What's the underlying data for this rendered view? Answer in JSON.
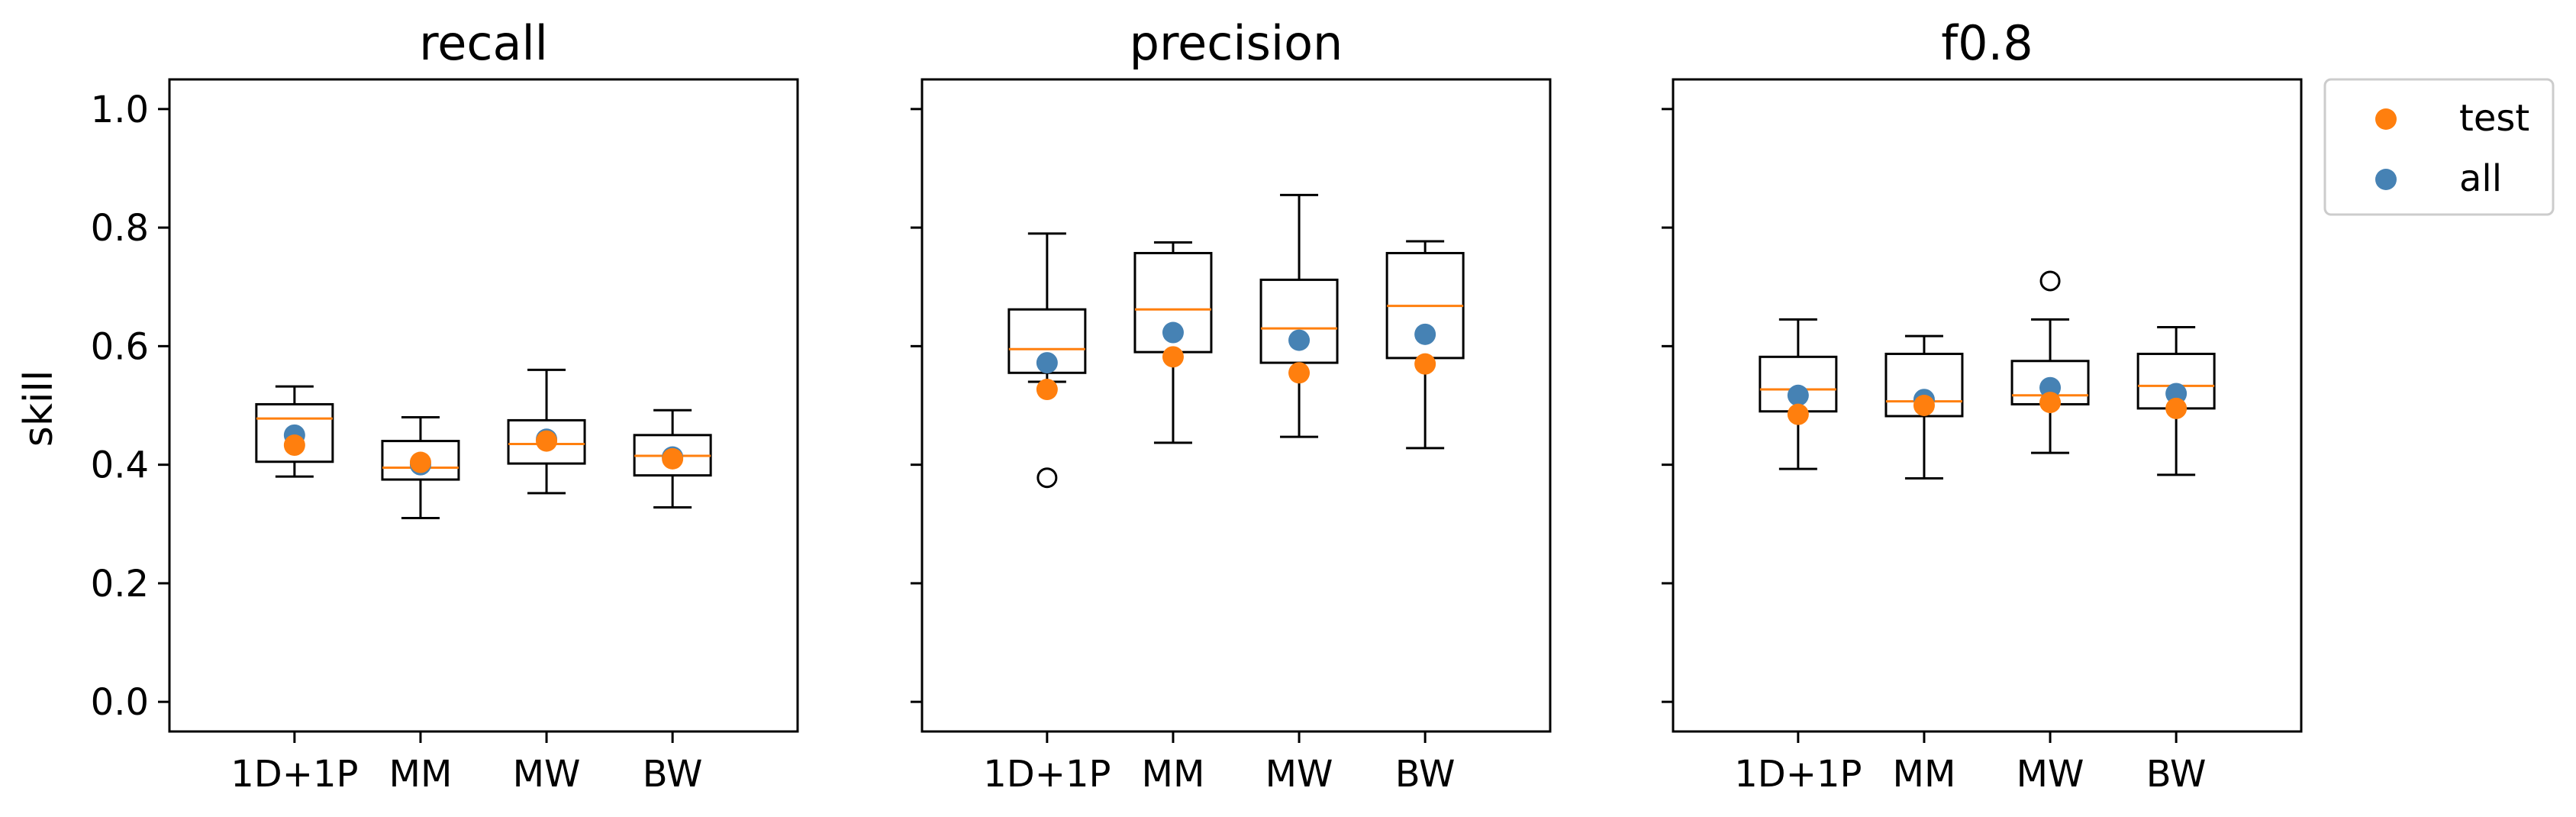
{
  "chart_data": {
    "type": "box",
    "ylabel": "skill",
    "ylim": [
      -0.05,
      1.05
    ],
    "yticks": [
      "0.0",
      "0.2",
      "0.4",
      "0.6",
      "0.8",
      "1.0"
    ],
    "ytick_values": [
      0.0,
      0.2,
      0.4,
      0.6,
      0.8,
      1.0
    ],
    "categories": [
      "1D+1P",
      "MM",
      "MW",
      "BW"
    ],
    "legend": {
      "placement": "outside-top-right",
      "entries": [
        {
          "name": "test",
          "color": "#ff7f0e"
        },
        {
          "name": "all",
          "color": "#4682b4"
        }
      ]
    },
    "colors": {
      "median": "#ff7f0e",
      "test": "#ff7f0e",
      "all": "#4682b4",
      "box": "#000000"
    },
    "panels": [
      {
        "title": "recall",
        "boxes": [
          {
            "whislo": 0.38,
            "q1": 0.405,
            "med": 0.478,
            "q3": 0.502,
            "whishi": 0.532,
            "fliers": []
          },
          {
            "whislo": 0.31,
            "q1": 0.375,
            "med": 0.395,
            "q3": 0.44,
            "whishi": 0.48,
            "fliers": []
          },
          {
            "whislo": 0.352,
            "q1": 0.402,
            "med": 0.435,
            "q3": 0.475,
            "whishi": 0.56,
            "fliers": []
          },
          {
            "whislo": 0.328,
            "q1": 0.382,
            "med": 0.415,
            "q3": 0.45,
            "whishi": 0.492,
            "fliers": []
          }
        ],
        "test": [
          0.433,
          0.404,
          0.44,
          0.41
        ],
        "all": [
          0.45,
          0.4,
          0.443,
          0.413
        ]
      },
      {
        "title": "precision",
        "boxes": [
          {
            "whislo": 0.54,
            "q1": 0.555,
            "med": 0.595,
            "q3": 0.662,
            "whishi": 0.79,
            "fliers": [
              0.378
            ]
          },
          {
            "whislo": 0.437,
            "q1": 0.59,
            "med": 0.662,
            "q3": 0.757,
            "whishi": 0.775,
            "fliers": []
          },
          {
            "whislo": 0.447,
            "q1": 0.572,
            "med": 0.63,
            "q3": 0.712,
            "whishi": 0.855,
            "fliers": []
          },
          {
            "whislo": 0.428,
            "q1": 0.58,
            "med": 0.668,
            "q3": 0.757,
            "whishi": 0.777,
            "fliers": []
          }
        ],
        "test": [
          0.527,
          0.582,
          0.555,
          0.57
        ],
        "all": [
          0.572,
          0.623,
          0.61,
          0.62
        ]
      },
      {
        "title": "f0.8",
        "boxes": [
          {
            "whislo": 0.393,
            "q1": 0.49,
            "med": 0.527,
            "q3": 0.582,
            "whishi": 0.645,
            "fliers": []
          },
          {
            "whislo": 0.377,
            "q1": 0.482,
            "med": 0.507,
            "q3": 0.587,
            "whishi": 0.617,
            "fliers": []
          },
          {
            "whislo": 0.42,
            "q1": 0.502,
            "med": 0.517,
            "q3": 0.575,
            "whishi": 0.645,
            "fliers": [
              0.71
            ]
          },
          {
            "whislo": 0.383,
            "q1": 0.495,
            "med": 0.533,
            "q3": 0.587,
            "whishi": 0.632,
            "fliers": []
          }
        ],
        "test": [
          0.485,
          0.5,
          0.505,
          0.495
        ],
        "all": [
          0.517,
          0.51,
          0.53,
          0.52
        ]
      }
    ]
  }
}
